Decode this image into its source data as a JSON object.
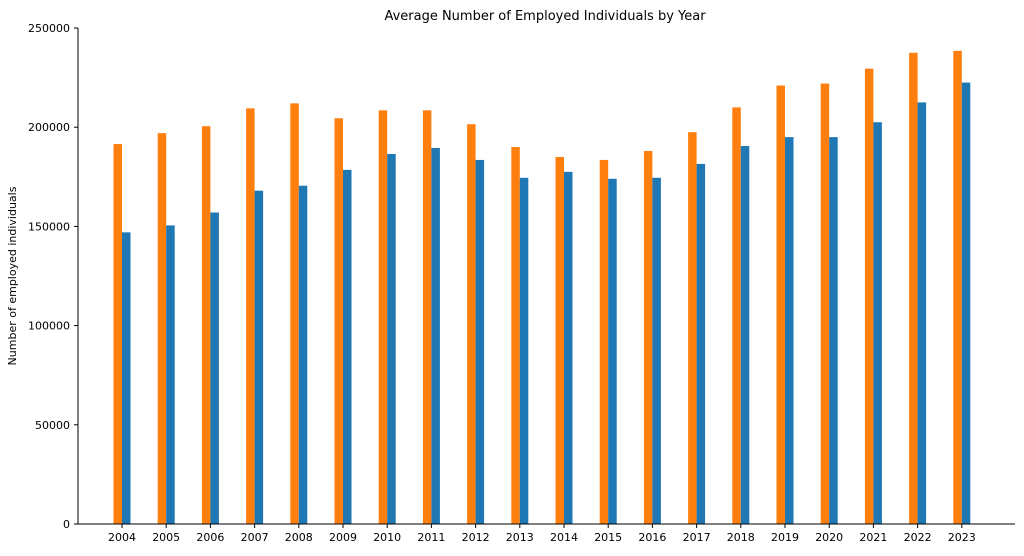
{
  "chart_data": {
    "type": "bar",
    "title": "Average Number of Employed Individuals by Year",
    "xlabel": "",
    "ylabel": "Number of employed individuals",
    "categories": [
      "2004",
      "2005",
      "2006",
      "2007",
      "2008",
      "2009",
      "2010",
      "2011",
      "2012",
      "2013",
      "2014",
      "2015",
      "2016",
      "2017",
      "2018",
      "2019",
      "2020",
      "2021",
      "2022",
      "2023"
    ],
    "series": [
      {
        "color": "#ff7f0e",
        "values": [
          191500,
          197000,
          200500,
          209500,
          212000,
          204500,
          208500,
          208500,
          201500,
          190000,
          185000,
          183500,
          188000,
          197500,
          210000,
          221000,
          222000,
          229500,
          237500,
          238500
        ]
      },
      {
        "color": "#1f77b4",
        "values": [
          147000,
          150500,
          157000,
          168000,
          170500,
          178500,
          186500,
          189500,
          183500,
          174500,
          177500,
          174000,
          174500,
          181500,
          190500,
          195000,
          195000,
          202500,
          212500,
          222500
        ]
      }
    ],
    "ylim": [
      0,
      250000
    ],
    "yticks": [
      "0",
      "50000",
      "100000",
      "150000",
      "200000",
      "250000"
    ],
    "grid": false
  }
}
